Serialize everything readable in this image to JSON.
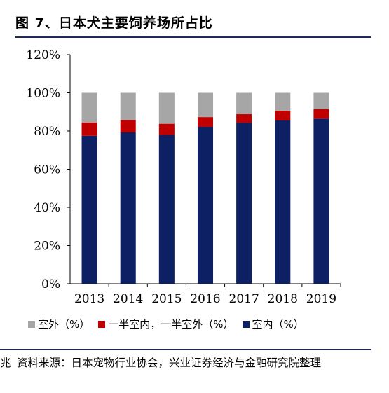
{
  "figure": {
    "title": "图 7、日本犬主要饲养场所占比",
    "source_prefix": "兆",
    "source": "资料来源：日本宠物行业协会，兴业证券经济与金融研究院整理"
  },
  "colors": {
    "outdoor": "#a6a6a6",
    "half": "#c00000",
    "indoor": "#0c2063"
  },
  "chart_data": {
    "type": "bar",
    "stacked": true,
    "categories": [
      "2013",
      "2014",
      "2015",
      "2016",
      "2017",
      "2018",
      "2019"
    ],
    "ylim": [
      0,
      120
    ],
    "yticks": [
      "0%",
      "20%",
      "40%",
      "60%",
      "80%",
      "100%",
      "120%"
    ],
    "grid": false,
    "legend_position": "bottom",
    "series": [
      {
        "key": "indoor",
        "name": "室内（%）",
        "values": [
          77.5,
          79.3,
          78.0,
          82.1,
          84.3,
          85.5,
          86.5
        ]
      },
      {
        "key": "half",
        "name": "一半室内，一半室外（%）",
        "values": [
          7.0,
          6.4,
          5.8,
          5.2,
          4.5,
          5.2,
          5.0
        ]
      },
      {
        "key": "outdoor",
        "name": "室外（%）",
        "values": [
          15.5,
          14.3,
          16.2,
          12.7,
          11.2,
          9.3,
          8.5
        ]
      }
    ],
    "legend_order": [
      "outdoor",
      "half",
      "indoor"
    ]
  }
}
